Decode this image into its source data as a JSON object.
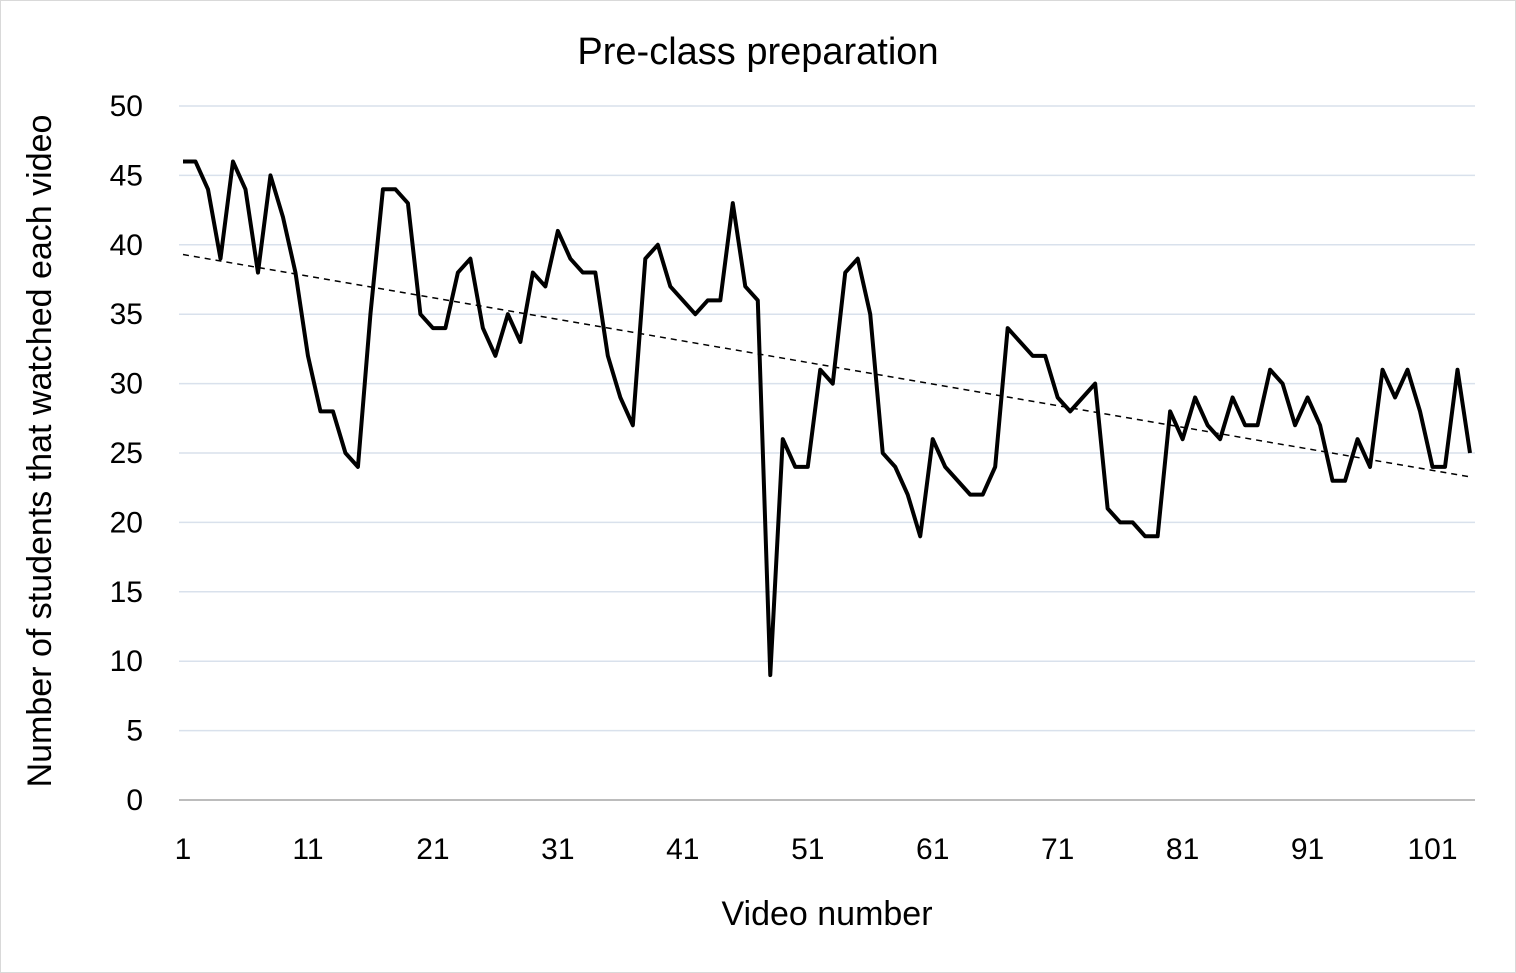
{
  "chart_data": {
    "type": "line",
    "title": "Pre-class preparation",
    "xlabel": "Video number",
    "ylabel": "Number of students that watched each video",
    "xlim": [
      1,
      104
    ],
    "ylim": [
      0,
      50
    ],
    "y_ticks": [
      0,
      5,
      10,
      15,
      20,
      25,
      30,
      35,
      40,
      45,
      50
    ],
    "x_ticks": [
      1,
      11,
      21,
      31,
      41,
      51,
      61,
      71,
      81,
      91,
      101
    ],
    "grid": true,
    "series": [
      {
        "values": [
          46,
          46,
          44,
          39,
          46,
          44,
          38,
          45,
          42,
          38,
          32,
          28,
          28,
          25,
          24,
          35,
          44,
          44,
          43,
          35,
          34,
          34,
          38,
          39,
          34,
          32,
          35,
          33,
          38,
          37,
          41,
          39,
          38,
          38,
          32,
          29,
          27,
          39,
          40,
          37,
          36,
          35,
          36,
          36,
          43,
          37,
          36,
          9,
          26,
          24,
          24,
          31,
          30,
          38,
          39,
          35,
          25,
          24,
          22,
          19,
          26,
          24,
          23,
          22,
          22,
          24,
          34,
          33,
          32,
          32,
          29,
          28,
          29,
          30,
          21,
          20,
          20,
          19,
          19,
          28,
          26,
          29,
          27,
          26,
          29,
          27,
          27,
          31,
          30,
          27,
          29,
          27,
          23,
          23,
          26,
          24,
          31,
          29,
          31,
          28,
          24,
          24,
          31,
          25
        ],
        "color": "#000000"
      }
    ],
    "trendline": {
      "type": "linear",
      "style": "dotted"
    }
  }
}
